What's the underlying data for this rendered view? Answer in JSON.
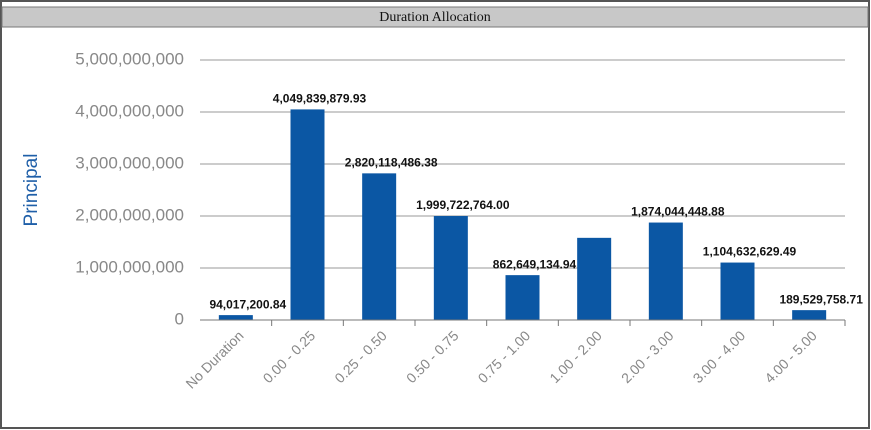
{
  "chart_data": {
    "type": "bar",
    "title": "Duration Allocation",
    "y_label": "Principal",
    "categories": [
      "No Duration",
      "0.00 - 0.25",
      "0.25 - 0.50",
      "0.50 - 0.75",
      "0.75 - 1.00",
      "1.00 - 2.00",
      "2.00 - 3.00",
      "3.00 - 4.00",
      "4.00 - 5.00"
    ],
    "values": [
      94017200.84,
      4049839879.93,
      2820118486.38,
      1999722764.0,
      862649134.94,
      1580000000,
      1874044448.88,
      1104632629.49,
      189529758.71
    ],
    "value_labels": [
      "94,017,200.84",
      "4,049,839,879.93",
      "2,820,118,486.38",
      "1,999,722,764.00",
      "862,649,134.94",
      null,
      "1,874,044,448.88",
      "1,104,632,629.49",
      "189,529,758.71"
    ],
    "color": "#0b57a4",
    "ylim": [
      0,
      5000000000
    ],
    "yticks": [
      0,
      {
        "value": 1000000000,
        "label": "1,000,000,000"
      },
      {
        "value": 2000000000,
        "label": "2,000,000,000"
      },
      {
        "value": 3000000000,
        "label": "3,000,000,000"
      },
      {
        "value": 4000000000,
        "label": "4,000,000,000"
      },
      {
        "value": 5000000000,
        "label": "5,000,000,000"
      }
    ],
    "grid": true
  }
}
